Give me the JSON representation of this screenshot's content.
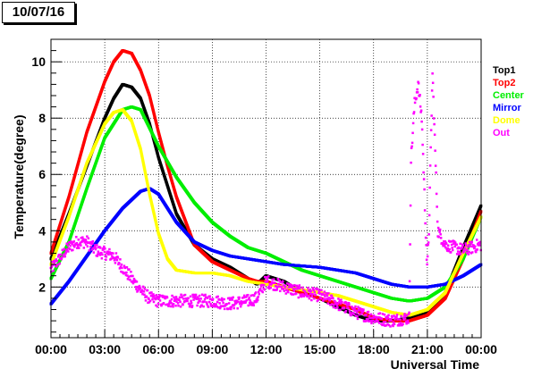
{
  "chart_data": {
    "type": "scatter",
    "title": "10/07/16",
    "xlabel": "Universal Time",
    "ylabel": "Temperature(degree)",
    "xlim": [
      0,
      24
    ],
    "ylim": [
      0.2,
      10.8
    ],
    "grid": true,
    "legend_placement": "right",
    "x_ticks": [
      0,
      3,
      6,
      9,
      12,
      15,
      18,
      21,
      24
    ],
    "x_tick_labels": [
      "00:00",
      "03:00",
      "06:00",
      "09:00",
      "12:00",
      "15:00",
      "18:00",
      "21:00",
      "00:00"
    ],
    "y_ticks": [
      2,
      4,
      6,
      8,
      10
    ],
    "y_tick_labels": [
      "2",
      "4",
      "6",
      "8",
      "10"
    ],
    "series": [
      {
        "name": "Top1",
        "color": "#000000",
        "x": [
          0,
          1,
          2,
          3,
          3.5,
          4,
          4.5,
          5,
          5.5,
          6,
          6.5,
          7,
          8,
          9,
          10,
          11,
          11.5,
          12,
          13,
          14,
          15,
          16,
          17,
          18,
          19,
          20,
          21,
          22,
          23,
          24
        ],
        "y": [
          3.0,
          4.6,
          6.3,
          8.0,
          8.7,
          9.2,
          9.1,
          8.7,
          7.8,
          6.6,
          5.6,
          4.6,
          3.5,
          3.0,
          2.7,
          2.3,
          2.1,
          2.4,
          2.2,
          1.8,
          1.6,
          1.3,
          1.0,
          0.8,
          0.8,
          0.9,
          1.1,
          1.8,
          3.4,
          4.9
        ]
      },
      {
        "name": "Top2",
        "color": "#ff0000",
        "x": [
          0,
          1,
          2,
          3,
          3.5,
          4,
          4.5,
          5,
          5.5,
          6,
          6.5,
          7,
          8,
          9,
          10,
          11,
          11.5,
          12,
          13,
          14,
          15,
          16,
          17,
          18,
          19,
          20,
          21,
          22,
          23,
          24
        ],
        "y": [
          3.2,
          5.2,
          7.5,
          9.3,
          10.0,
          10.4,
          10.3,
          9.7,
          8.8,
          7.5,
          6.3,
          5.2,
          3.5,
          2.9,
          2.6,
          2.3,
          2.2,
          2.2,
          2.0,
          1.8,
          1.6,
          1.4,
          1.2,
          0.9,
          0.8,
          0.8,
          1.0,
          1.6,
          3.0,
          4.7
        ]
      },
      {
        "name": "Center",
        "color": "#00ee00",
        "x": [
          0,
          1,
          2,
          3,
          4,
          4.5,
          5,
          6,
          7,
          8,
          9,
          10,
          11,
          12,
          13,
          14,
          15,
          16,
          17,
          18,
          19,
          20,
          21,
          22,
          23,
          24
        ],
        "y": [
          2.3,
          3.6,
          5.5,
          7.3,
          8.3,
          8.4,
          8.3,
          7.0,
          5.9,
          5.0,
          4.3,
          3.8,
          3.4,
          3.2,
          2.9,
          2.6,
          2.4,
          2.2,
          2.0,
          1.8,
          1.6,
          1.5,
          1.6,
          2.0,
          3.0,
          4.5
        ]
      },
      {
        "name": "Mirror",
        "color": "#0000ff",
        "x": [
          0,
          1,
          2,
          3,
          4,
          5,
          5.5,
          6,
          7,
          8,
          9,
          10,
          11,
          12,
          13,
          14,
          15,
          16,
          17,
          18,
          19,
          20,
          21,
          22,
          23,
          24
        ],
        "y": [
          1.4,
          2.2,
          3.1,
          4.0,
          4.8,
          5.4,
          5.5,
          5.3,
          4.3,
          3.6,
          3.3,
          3.1,
          3.0,
          2.9,
          2.8,
          2.75,
          2.7,
          2.6,
          2.5,
          2.3,
          2.1,
          2.0,
          2.0,
          2.1,
          2.4,
          2.8
        ]
      },
      {
        "name": "Dome",
        "color": "#ffff00",
        "x": [
          0,
          1,
          2,
          3,
          3.5,
          4,
          4.5,
          5,
          5.5,
          6,
          6.5,
          7,
          8,
          9,
          10,
          11,
          12,
          13,
          14,
          15,
          16,
          17,
          18,
          19,
          20,
          21,
          22,
          23,
          24
        ],
        "y": [
          2.8,
          4.5,
          6.4,
          7.8,
          8.2,
          8.3,
          7.9,
          6.9,
          5.3,
          3.9,
          3.0,
          2.6,
          2.5,
          2.5,
          2.4,
          2.2,
          2.1,
          2.0,
          1.9,
          1.8,
          1.7,
          1.5,
          1.3,
          1.1,
          1.0,
          1.2,
          1.8,
          3.2,
          4.5
        ]
      },
      {
        "name": "Out",
        "color": "#ff00ff",
        "x": [
          0,
          0.5,
          1,
          1.5,
          2,
          2.5,
          3,
          3.5,
          4,
          4.5,
          5,
          5.5,
          6,
          7,
          8,
          9,
          10,
          11,
          11.5,
          12,
          12.5,
          13,
          14,
          15,
          16,
          17,
          18,
          19,
          20,
          20.1,
          20.3,
          20.5,
          20.7,
          21,
          21.1,
          21.3,
          21.6,
          22,
          23,
          24
        ],
        "y": [
          2.6,
          3.0,
          3.4,
          3.6,
          3.6,
          3.3,
          3.2,
          3.1,
          2.7,
          2.3,
          1.9,
          1.6,
          1.5,
          1.5,
          1.5,
          1.5,
          1.4,
          1.5,
          1.6,
          2.2,
          2.1,
          2.0,
          1.8,
          1.7,
          1.4,
          1.1,
          0.9,
          0.8,
          0.9,
          6.5,
          8.5,
          9.2,
          8.0,
          2.6,
          4.0,
          9.6,
          4.0,
          3.5,
          3.3,
          3.5
        ]
      }
    ]
  }
}
